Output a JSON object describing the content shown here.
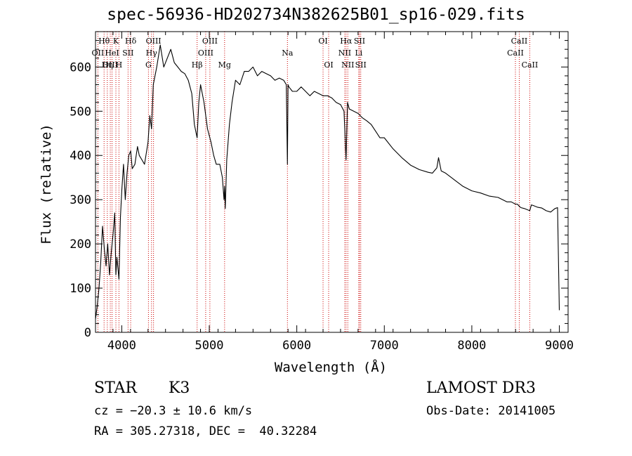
{
  "chart_data": {
    "type": "line",
    "title": "spec-56936-HD202734N382625B01_sp16-029.fits",
    "xlabel": "Wavelength (Å)",
    "ylabel": "Flux (relative)",
    "xlim": [
      3700,
      9100
    ],
    "ylim": [
      0,
      680
    ],
    "xticks": [
      4000,
      5000,
      6000,
      7000,
      8000,
      9000
    ],
    "yticks": [
      0,
      100,
      200,
      300,
      400,
      500,
      600
    ],
    "grid": false,
    "series": [
      {
        "color": "#000000",
        "x": [
          3700,
          3720,
          3740,
          3760,
          3780,
          3800,
          3820,
          3840,
          3860,
          3880,
          3900,
          3920,
          3933,
          3945,
          3968,
          3985,
          4000,
          4020,
          4040,
          4060,
          4080,
          4102,
          4120,
          4150,
          4180,
          4200,
          4230,
          4260,
          4300,
          4320,
          4340,
          4360,
          4400,
          4440,
          4480,
          4520,
          4560,
          4600,
          4640,
          4680,
          4720,
          4760,
          4800,
          4830,
          4861,
          4880,
          4900,
          4940,
          4980,
          5020,
          5050,
          5080,
          5120,
          5150,
          5168,
          5175,
          5183,
          5200,
          5230,
          5260,
          5300,
          5350,
          5400,
          5450,
          5500,
          5550,
          5600,
          5650,
          5700,
          5750,
          5800,
          5850,
          5880,
          5893,
          5900,
          5910,
          5950,
          6000,
          6050,
          6100,
          6150,
          6200,
          6250,
          6300,
          6350,
          6400,
          6450,
          6500,
          6540,
          6563,
          6580,
          6600,
          6650,
          6700,
          6750,
          6800,
          6850,
          6900,
          6950,
          7000,
          7100,
          7200,
          7300,
          7400,
          7500,
          7550,
          7600,
          7620,
          7650,
          7700,
          7800,
          7900,
          8000,
          8100,
          8200,
          8300,
          8400,
          8450,
          8498,
          8520,
          8542,
          8560,
          8600,
          8662,
          8680,
          8700,
          8750,
          8800,
          8850,
          8900,
          8950,
          8980,
          9000
        ],
        "y": [
          30,
          60,
          100,
          160,
          240,
          190,
          150,
          200,
          130,
          180,
          220,
          270,
          130,
          170,
          120,
          260,
          320,
          380,
          300,
          360,
          400,
          410,
          370,
          380,
          420,
          400,
          390,
          380,
          430,
          490,
          460,
          560,
          600,
          650,
          600,
          620,
          640,
          610,
          600,
          590,
          585,
          570,
          540,
          470,
          440,
          520,
          560,
          520,
          460,
          430,
          400,
          380,
          380,
          350,
          300,
          330,
          280,
          390,
          470,
          520,
          570,
          560,
          590,
          590,
          600,
          580,
          590,
          585,
          580,
          570,
          575,
          570,
          560,
          380,
          560,
          555,
          545,
          545,
          555,
          545,
          535,
          545,
          540,
          535,
          535,
          530,
          520,
          515,
          500,
          390,
          520,
          505,
          500,
          495,
          485,
          478,
          470,
          455,
          440,
          440,
          415,
          395,
          378,
          368,
          362,
          360,
          372,
          395,
          365,
          360,
          345,
          330,
          320,
          315,
          308,
          305,
          295,
          295,
          290,
          290,
          285,
          282,
          280,
          275,
          288,
          287,
          283,
          281,
          275,
          272,
          280,
          282,
          50
        ]
      }
    ],
    "lines": [
      {
        "label": "Hθ",
        "x": 3798,
        "row": 0
      },
      {
        "label": "OII",
        "x": 3727,
        "row": 1
      },
      {
        "label": "OIII",
        "x": 3869,
        "row": 2
      },
      {
        "label": "K",
        "x": 3933,
        "row": 0
      },
      {
        "label": "HeI",
        "x": 3889,
        "row": 1
      },
      {
        "label": "Hη",
        "x": 3835,
        "row": 2
      },
      {
        "label": "Hδ",
        "x": 4102,
        "row": 0
      },
      {
        "label": "SII",
        "x": 4072,
        "row": 1
      },
      {
        "label": "H",
        "x": 3968,
        "row": 2
      },
      {
        "label": "OIII",
        "x": 4363,
        "row": 0
      },
      {
        "label": "Hγ",
        "x": 4340,
        "row": 1
      },
      {
        "label": "G",
        "x": 4305,
        "row": 2
      },
      {
        "label": "OIII",
        "x": 5007,
        "row": 0
      },
      {
        "label": "OIII",
        "x": 4959,
        "row": 1
      },
      {
        "label": "Hβ",
        "x": 4861,
        "row": 2
      },
      {
        "label": "Mg",
        "x": 5175,
        "row": 2
      },
      {
        "label": "Na",
        "x": 5893,
        "row": 1
      },
      {
        "label": "OI",
        "x": 6300,
        "row": 0
      },
      {
        "label": "OI",
        "x": 6364,
        "row": 2
      },
      {
        "label": "Hα",
        "x": 6563,
        "row": 0
      },
      {
        "label": "NII",
        "x": 6548,
        "row": 1
      },
      {
        "label": "NII",
        "x": 6583,
        "row": 2
      },
      {
        "label": "SII",
        "x": 6717,
        "row": 0
      },
      {
        "label": "Li",
        "x": 6708,
        "row": 1
      },
      {
        "label": "SII",
        "x": 6731,
        "row": 2
      },
      {
        "label": "CaII",
        "x": 8542,
        "row": 0
      },
      {
        "label": "CaII",
        "x": 8498,
        "row": 1
      },
      {
        "label": "CaII",
        "x": 8662,
        "row": 2
      }
    ]
  },
  "info": {
    "object_type": "STAR",
    "subclass": "K3",
    "survey": "LAMOST DR3",
    "cz": "cz = −20.3 ± 10.6 km/s",
    "obs_date": "Obs-Date: 20141005",
    "coords": "RA = 305.27318, DEC =  40.32284"
  }
}
